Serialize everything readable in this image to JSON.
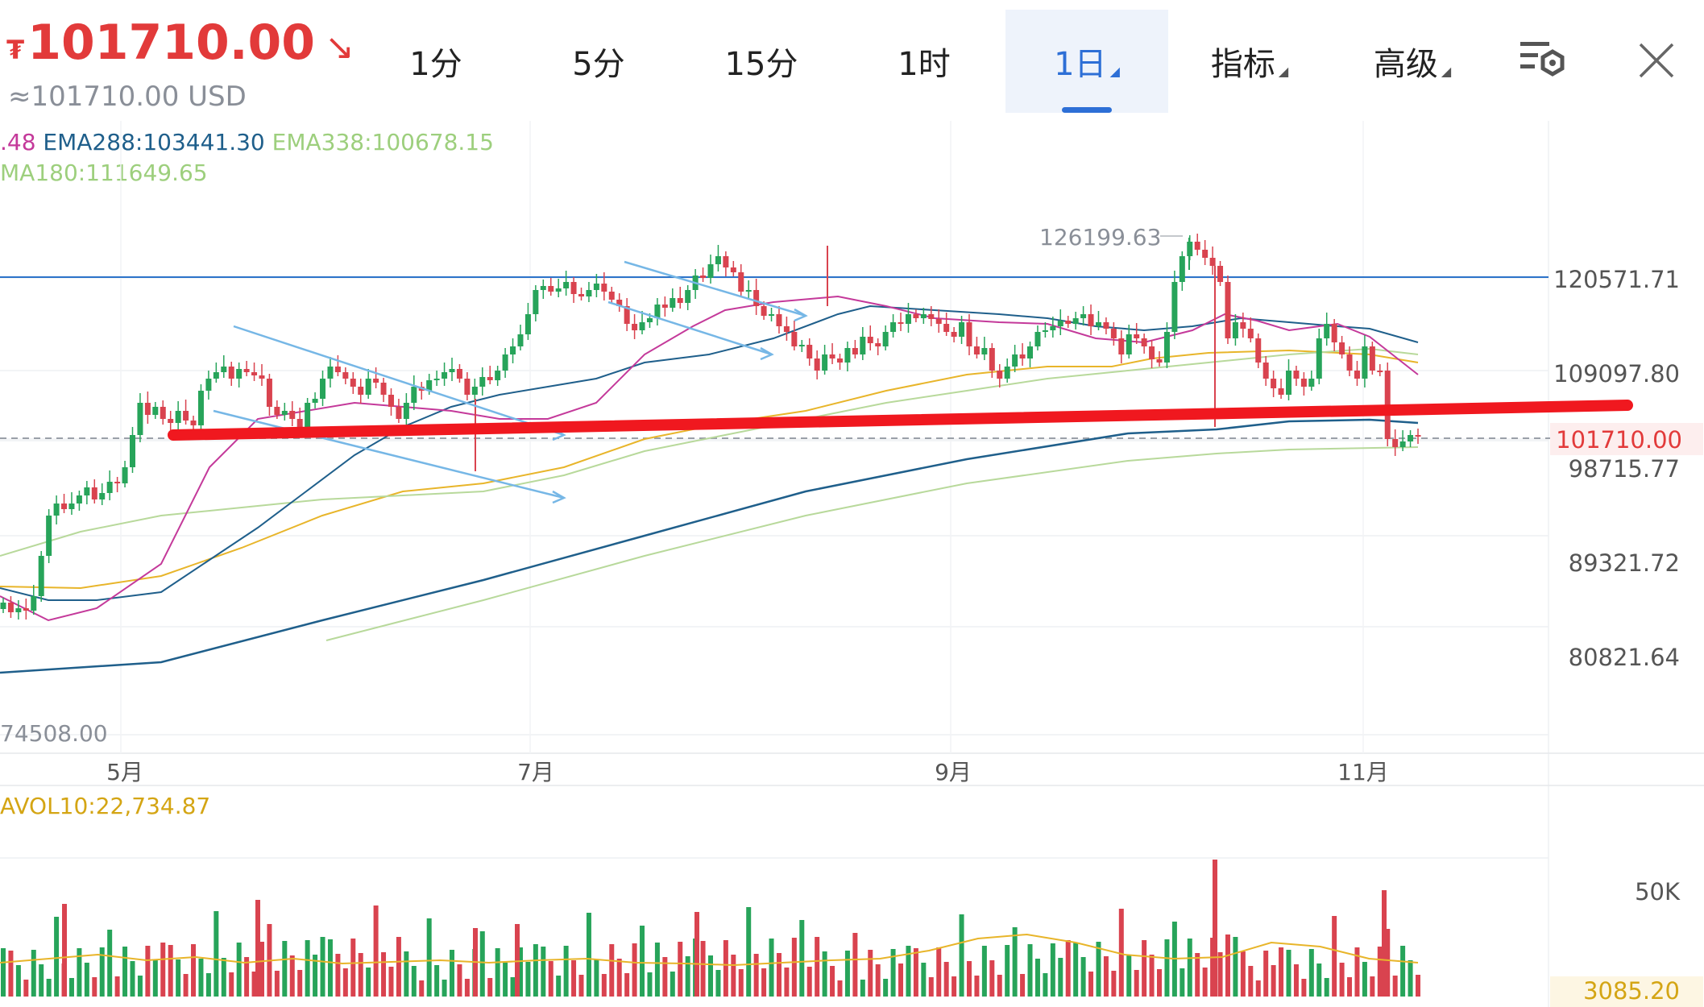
{
  "header": {
    "currency_sign": "₮",
    "last_price": "101710.00",
    "trend_arrow": "↘",
    "usd_price": "≈101710.00 USD"
  },
  "tabs": [
    {
      "label": "1分",
      "active": false,
      "has_caret": false
    },
    {
      "label": "5分",
      "active": false,
      "has_caret": false
    },
    {
      "label": "15分",
      "active": false,
      "has_caret": false
    },
    {
      "label": "1时",
      "active": false,
      "has_caret": false
    },
    {
      "label": "1日",
      "active": true,
      "has_caret": true
    },
    {
      "label": "指标",
      "active": false,
      "has_caret": true
    },
    {
      "label": "高级",
      "active": false,
      "has_caret": true
    }
  ],
  "icons": {
    "settings": "chart-settings-icon",
    "close": "close-icon"
  },
  "indicators": {
    "line1": [
      {
        "text": ".48",
        "color": "#c4399a"
      },
      {
        "text": " EMA288:103441.30",
        "color": "#1f5f8b"
      },
      {
        "text": " EMA338:100678.15",
        "color": "#9dcf7d"
      }
    ],
    "line2": [
      {
        "text": "MA180:111649.65",
        "color": "#9dcf7d"
      }
    ],
    "volume": [
      {
        "text": "AVOL10:22,734.87",
        "color": "#d4a514"
      }
    ]
  },
  "price_axis": {
    "ticks": [
      "120571.71",
      "109097.80",
      "98715.77",
      "89321.72",
      "80821.64"
    ],
    "current_price_tag": "101710.00",
    "high_label": "126199.63",
    "low_label": "74508.00"
  },
  "time_axis": {
    "ticks": [
      "5月",
      "7月",
      "9月",
      "11月"
    ]
  },
  "volume_axis": {
    "ticks": [
      "50K"
    ],
    "current_volume_tag": "3085.20"
  },
  "colors": {
    "up": "#27a45a",
    "down": "#d9434f",
    "ema_blue": "#1f5f8b",
    "ma_magenta": "#c4399a",
    "ma_orange": "#e8b52a",
    "ma_light_green": "#b8d99b",
    "horizontal_level": "#2c73c9",
    "trend_arrows": "#76b7e6",
    "drawn_support_line": "#f0181f",
    "accent_blue": "#2d6fd6"
  },
  "chart_data": {
    "type": "candlestick",
    "period": "1日",
    "drawn_horizontal_level": 120571.71,
    "current_price": 101710.0,
    "period_high": 126199.63,
    "period_low": 74508.0,
    "indicator_values": {
      "EMA288": 103441.3,
      "EMA338": 100678.15,
      "MA180": 111649.65,
      "AVOL10": 22734.87
    },
    "current_volume": 3085.2
  }
}
